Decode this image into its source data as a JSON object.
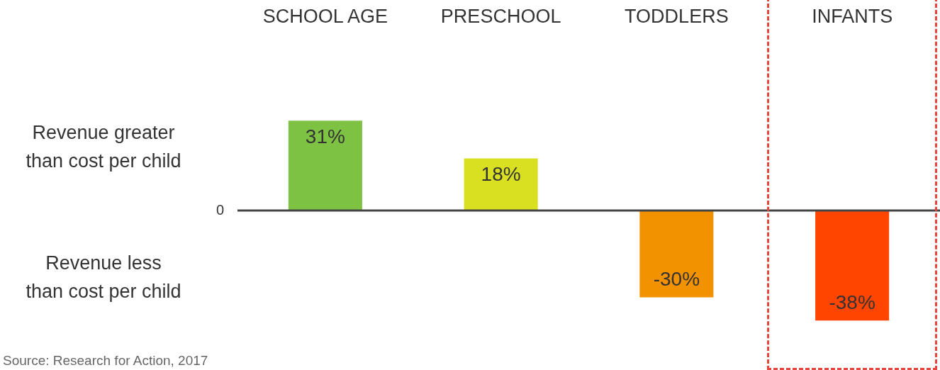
{
  "chart_data": {
    "type": "bar",
    "categories": [
      "SCHOOL AGE",
      "PRESCHOOL",
      "TODDLERS",
      "INFANTS"
    ],
    "values": [
      31,
      18,
      -30,
      -38
    ],
    "value_labels": [
      "31%",
      "18%",
      "-30%",
      "-38%"
    ],
    "colors": [
      "#7dc242",
      "#d9e021",
      "#f39200",
      "#ff4500"
    ],
    "legend": false,
    "annotations": [
      "Revenue greater\nthan cost per child",
      "0",
      "Revenue less\nthan cost per child",
      "Source: Research for Action, 2017"
    ]
  }
}
